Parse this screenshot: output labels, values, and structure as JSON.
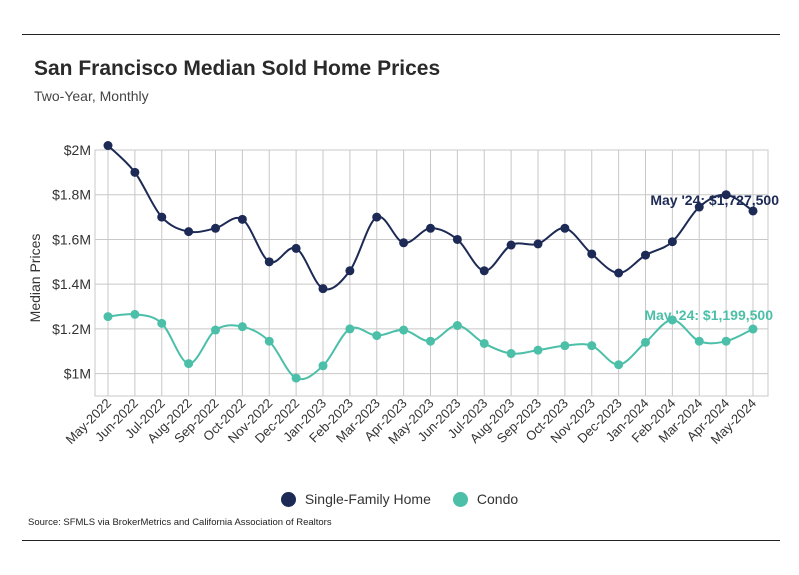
{
  "header": {
    "title": "San Francisco Median Sold Home Prices",
    "subtitle": "Two-Year, Monthly"
  },
  "footer": {
    "source": "Source:  SFMLS via BrokerMetrics and California Association of Realtors"
  },
  "colors": {
    "single_family": "#1d2a55",
    "condo": "#4cbfa8",
    "grid": "#c8c8c8"
  },
  "chart_data": {
    "type": "line",
    "title": "San Francisco Median Sold Home Prices",
    "subtitle": "Two-Year, Monthly",
    "ylabel": "Median Prices",
    "xlabel": "",
    "ylim": [
      900000,
      2000000
    ],
    "yticks": [
      1000000,
      1200000,
      1400000,
      1600000,
      1800000,
      2000000
    ],
    "ytick_labels": [
      "$1M",
      "$1.2M",
      "$1.4M",
      "$1.6M",
      "$1.8M",
      "$2M"
    ],
    "categories": [
      "May-2022",
      "Jun-2022",
      "Jul-2022",
      "Aug-2022",
      "Sep-2022",
      "Oct-2022",
      "Nov-2022",
      "Dec-2022",
      "Jan-2023",
      "Feb-2023",
      "Mar-2023",
      "Apr-2023",
      "May-2023",
      "Jun-2023",
      "Jul-2023",
      "Aug-2023",
      "Sep-2023",
      "Oct-2023",
      "Nov-2023",
      "Dec-2023",
      "Jan-2024",
      "Feb-2024",
      "Mar-2024",
      "Apr-2024",
      "May-2024"
    ],
    "series": [
      {
        "name": "Single-Family Home",
        "values": [
          2020000,
          1900000,
          1700000,
          1635000,
          1650000,
          1690000,
          1500000,
          1560000,
          1380000,
          1460000,
          1700000,
          1585000,
          1650000,
          1600000,
          1460000,
          1575000,
          1580000,
          1650000,
          1535000,
          1450000,
          1530000,
          1590000,
          1745000,
          1800000,
          1727500
        ]
      },
      {
        "name": "Condo",
        "values": [
          1255000,
          1265000,
          1225000,
          1045000,
          1195000,
          1210000,
          1145000,
          980000,
          1035000,
          1200000,
          1170000,
          1195000,
          1145000,
          1215000,
          1135000,
          1090000,
          1105000,
          1125000,
          1125000,
          1040000,
          1140000,
          1240000,
          1145000,
          1145000,
          1199500
        ]
      }
    ],
    "annotations": [
      {
        "series": "Single-Family Home",
        "text": "May '24: $1,727,500"
      },
      {
        "series": "Condo",
        "text": "May '24: $1,199,500"
      }
    ],
    "legend": [
      "Single-Family Home",
      "Condo"
    ],
    "legend_position": "bottom",
    "grid": true
  }
}
